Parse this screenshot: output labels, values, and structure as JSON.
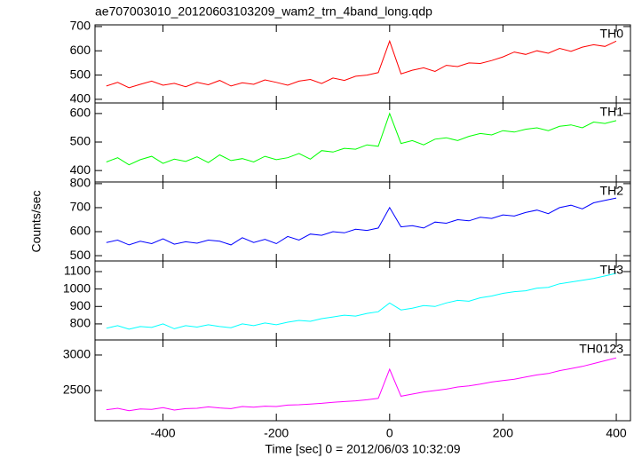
{
  "chart_data": [
    {
      "type": "line",
      "title": "ae707003010_20120603103209_wam2_trn_4band_long.qdp",
      "x": [
        -500,
        -480,
        -460,
        -440,
        -420,
        -400,
        -380,
        -360,
        -340,
        -320,
        -300,
        -280,
        -260,
        -240,
        -220,
        -200,
        -180,
        -160,
        -140,
        -120,
        -100,
        -80,
        -60,
        -40,
        -20,
        0,
        20,
        40,
        60,
        80,
        100,
        120,
        140,
        160,
        180,
        200,
        220,
        240,
        260,
        280,
        300,
        320,
        340,
        360,
        380,
        400
      ],
      "series": [
        {
          "name": "TH0",
          "color": "#ff0000",
          "values": [
            455,
            470,
            448,
            462,
            475,
            458,
            466,
            452,
            470,
            460,
            478,
            455,
            468,
            462,
            480,
            470,
            458,
            475,
            482,
            465,
            488,
            478,
            495,
            500,
            510,
            640,
            505,
            520,
            530,
            515,
            540,
            535,
            550,
            548,
            560,
            575,
            595,
            585,
            600,
            590,
            610,
            598,
            615,
            625,
            618,
            640
          ]
        }
      ],
      "xlim": [
        -520,
        425
      ],
      "xticks": [
        -400,
        -200,
        0,
        200,
        400
      ],
      "ylim": [
        385,
        707
      ],
      "yticks": [
        400,
        500,
        600,
        700
      ]
    },
    {
      "type": "line",
      "x": [
        -500,
        -480,
        -460,
        -440,
        -420,
        -400,
        -380,
        -360,
        -340,
        -320,
        -300,
        -280,
        -260,
        -240,
        -220,
        -200,
        -180,
        -160,
        -140,
        -120,
        -100,
        -80,
        -60,
        -40,
        -20,
        0,
        20,
        40,
        60,
        80,
        100,
        120,
        140,
        160,
        180,
        200,
        220,
        240,
        260,
        280,
        300,
        320,
        340,
        360,
        380,
        400
      ],
      "series": [
        {
          "name": "TH1",
          "color": "#00ff00",
          "values": [
            430,
            445,
            420,
            438,
            450,
            425,
            440,
            432,
            448,
            428,
            455,
            435,
            442,
            430,
            450,
            438,
            445,
            460,
            440,
            470,
            465,
            478,
            475,
            490,
            485,
            600,
            495,
            505,
            490,
            510,
            515,
            505,
            520,
            530,
            525,
            540,
            535,
            545,
            550,
            540,
            555,
            560,
            550,
            570,
            565,
            575
          ]
        }
      ],
      "xlim": [
        -520,
        425
      ],
      "xticks": [
        -400,
        -200,
        0,
        200,
        400
      ],
      "ylim": [
        360,
        637
      ],
      "yticks": [
        400,
        500,
        600
      ]
    },
    {
      "type": "line",
      "y_label": "Counts/sec",
      "x": [
        -500,
        -480,
        -460,
        -440,
        -420,
        -400,
        -380,
        -360,
        -340,
        -320,
        -300,
        -280,
        -260,
        -240,
        -220,
        -200,
        -180,
        -160,
        -140,
        -120,
        -100,
        -80,
        -60,
        -40,
        -20,
        0,
        20,
        40,
        60,
        80,
        100,
        120,
        140,
        160,
        180,
        200,
        220,
        240,
        260,
        280,
        300,
        320,
        340,
        360,
        380,
        400
      ],
      "series": [
        {
          "name": "TH2",
          "color": "#0000ff",
          "values": [
            555,
            565,
            545,
            560,
            550,
            570,
            548,
            558,
            552,
            565,
            560,
            545,
            575,
            555,
            568,
            550,
            580,
            565,
            590,
            585,
            600,
            595,
            610,
            605,
            615,
            700,
            620,
            625,
            615,
            640,
            635,
            650,
            645,
            660,
            655,
            670,
            665,
            680,
            690,
            675,
            700,
            710,
            695,
            720,
            730,
            740
          ]
        }
      ],
      "xlim": [
        -520,
        425
      ],
      "xticks": [
        -400,
        -200,
        0,
        200,
        400
      ],
      "ylim": [
        478,
        807
      ],
      "yticks": [
        500,
        600,
        700,
        800
      ]
    },
    {
      "type": "line",
      "x": [
        -500,
        -480,
        -460,
        -440,
        -420,
        -400,
        -380,
        -360,
        -340,
        -320,
        -300,
        -280,
        -260,
        -240,
        -220,
        -200,
        -180,
        -160,
        -140,
        -120,
        -100,
        -80,
        -60,
        -40,
        -20,
        0,
        20,
        40,
        60,
        80,
        100,
        120,
        140,
        160,
        180,
        200,
        220,
        240,
        260,
        280,
        300,
        320,
        340,
        360,
        380,
        400
      ],
      "series": [
        {
          "name": "TH3",
          "color": "#00ffff",
          "values": [
            775,
            790,
            770,
            785,
            780,
            800,
            772,
            790,
            782,
            795,
            785,
            778,
            800,
            790,
            805,
            795,
            810,
            820,
            815,
            830,
            840,
            850,
            845,
            860,
            870,
            920,
            880,
            890,
            905,
            900,
            920,
            935,
            930,
            950,
            960,
            975,
            985,
            990,
            1005,
            1010,
            1030,
            1040,
            1050,
            1060,
            1075,
            1090
          ]
        }
      ],
      "xlim": [
        -520,
        425
      ],
      "xticks": [
        -400,
        -200,
        0,
        200,
        400
      ],
      "ylim": [
        708,
        1161
      ],
      "yticks": [
        800,
        900,
        1000,
        1100
      ]
    },
    {
      "type": "line",
      "x_label": "Time [sec] 0 = 2012/06/03 10:32:09",
      "x": [
        -500,
        -480,
        -460,
        -440,
        -420,
        -400,
        -380,
        -360,
        -340,
        -320,
        -300,
        -280,
        -260,
        -240,
        -220,
        -200,
        -180,
        -160,
        -140,
        -120,
        -100,
        -80,
        -60,
        -40,
        -20,
        0,
        20,
        40,
        60,
        80,
        100,
        120,
        140,
        160,
        180,
        200,
        220,
        240,
        260,
        280,
        300,
        320,
        340,
        360,
        380,
        400
      ],
      "series": [
        {
          "name": "TH0123",
          "color": "#ff00ff",
          "values": [
            2230,
            2250,
            2215,
            2240,
            2235,
            2260,
            2225,
            2245,
            2250,
            2270,
            2255,
            2245,
            2275,
            2265,
            2280,
            2275,
            2295,
            2300,
            2310,
            2320,
            2335,
            2345,
            2355,
            2370,
            2390,
            2800,
            2420,
            2450,
            2480,
            2500,
            2520,
            2550,
            2565,
            2590,
            2620,
            2640,
            2660,
            2690,
            2720,
            2740,
            2780,
            2810,
            2840,
            2880,
            2920,
            2960
          ]
        }
      ],
      "xlim": [
        -520,
        425
      ],
      "xticks": [
        -400,
        -200,
        0,
        200,
        400
      ],
      "ylim": [
        2075,
        3212
      ],
      "yticks": [
        2500,
        3000
      ]
    }
  ]
}
